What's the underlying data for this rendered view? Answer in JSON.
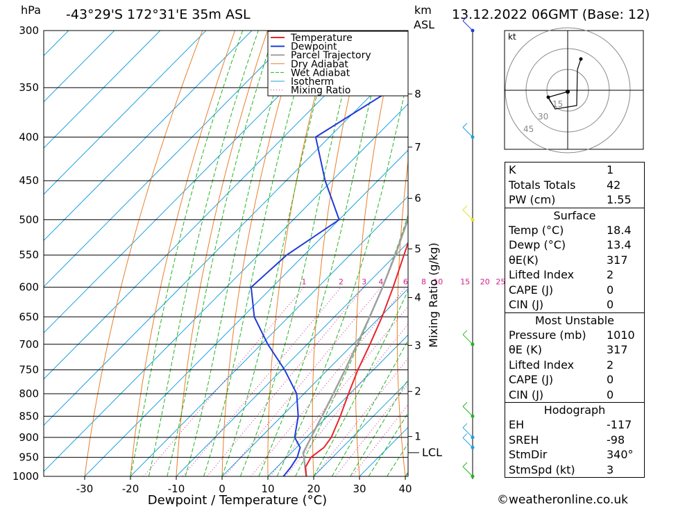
{
  "header": {
    "hpa_label": "hPa",
    "location": "-43°29'S  172°31'E  35m  ASL",
    "km_label": "km",
    "asl_label": "ASL",
    "datetime": "13.12.2022  06GMT  (Base: 12)"
  },
  "axes": {
    "xlabel": "Dewpoint / Temperature (°C)",
    "mixing_label": "Mixing Ratio (g/kg)",
    "lcl_label": "LCL",
    "hodo_unit": "kt",
    "hodo_rings": [
      "15",
      "30",
      "45"
    ]
  },
  "legend": [
    "Temperature",
    "Dewpoint",
    "Parcel Trajectory",
    "Dry Adiabat",
    "Wet Adiabat",
    "Isotherm",
    "Mixing Ratio"
  ],
  "colors": {
    "temperature": "#e8242a",
    "dewpoint": "#1f3bd8",
    "parcel": "#a0a0a0",
    "dry_adiabat": "#e87f2a",
    "wet_adiabat": "#22b422",
    "isotherm": "#1aa0e0",
    "mixing_ratio": "#d0208c"
  },
  "chart_data": {
    "type": "skew-t",
    "pressure_levels": [
      300,
      350,
      400,
      450,
      500,
      550,
      600,
      650,
      700,
      750,
      800,
      850,
      900,
      950,
      1000
    ],
    "x_ticks": [
      -30,
      -20,
      -10,
      0,
      10,
      20,
      30,
      40
    ],
    "xlim": [
      -40,
      40
    ],
    "ylim": [
      1000,
      300
    ],
    "km_ticks": [
      {
        "km": "1",
        "p": 898
      },
      {
        "km": "2",
        "p": 795
      },
      {
        "km": "3",
        "p": 702
      },
      {
        "km": "4",
        "p": 617
      },
      {
        "km": "5",
        "p": 541
      },
      {
        "km": "6",
        "p": 472
      },
      {
        "km": "7",
        "p": 411
      },
      {
        "km": "8",
        "p": 356
      }
    ],
    "lcl_pressure": 938,
    "mixing_ratios": [
      "1",
      "2",
      "3",
      "4",
      "6",
      "8",
      "10",
      "15",
      "20",
      "25"
    ],
    "temperature": [
      {
        "p": 1000,
        "t": 18.4
      },
      {
        "p": 975,
        "t": 16.2
      },
      {
        "p": 950,
        "t": 15.3
      },
      {
        "p": 925,
        "t": 16.0
      },
      {
        "p": 900,
        "t": 15.4
      },
      {
        "p": 850,
        "t": 12.8
      },
      {
        "p": 800,
        "t": 9.7
      },
      {
        "p": 750,
        "t": 6.6
      },
      {
        "p": 700,
        "t": 3.7
      },
      {
        "p": 650,
        "t": 0.4
      },
      {
        "p": 600,
        "t": -3.6
      },
      {
        "p": 550,
        "t": -8.2
      },
      {
        "p": 500,
        "t": -13.2
      },
      {
        "p": 450,
        "t": -18.2
      },
      {
        "p": 400,
        "t": -23.6
      },
      {
        "p": 380,
        "t": -26.0
      },
      {
        "p": 350,
        "t": -31.6
      },
      {
        "p": 300,
        "t": -42.0
      }
    ],
    "dewpoint": [
      {
        "p": 1000,
        "t": 13.4
      },
      {
        "p": 975,
        "t": 13.0
      },
      {
        "p": 950,
        "t": 12.3
      },
      {
        "p": 925,
        "t": 10.8
      },
      {
        "p": 900,
        "t": 7.4
      },
      {
        "p": 850,
        "t": 3.6
      },
      {
        "p": 800,
        "t": -1.6
      },
      {
        "p": 750,
        "t": -9.4
      },
      {
        "p": 700,
        "t": -18.6
      },
      {
        "p": 650,
        "t": -27.5
      },
      {
        "p": 600,
        "t": -34.6
      },
      {
        "p": 550,
        "t": -33.8
      },
      {
        "p": 500,
        "t": -30.0
      },
      {
        "p": 450,
        "t": -41.5
      },
      {
        "p": 400,
        "t": -53.0
      },
      {
        "p": 350,
        "t": -46.5
      },
      {
        "p": 300,
        "t": -57.0
      }
    ],
    "parcel": [
      {
        "p": 1000,
        "t": 18.4
      },
      {
        "p": 938,
        "t": 12.6
      },
      {
        "p": 900,
        "t": 11.0
      },
      {
        "p": 850,
        "t": 8.8
      },
      {
        "p": 800,
        "t": 6.4
      },
      {
        "p": 750,
        "t": 3.8
      },
      {
        "p": 700,
        "t": 0.9
      },
      {
        "p": 650,
        "t": -2.3
      },
      {
        "p": 600,
        "t": -5.9
      },
      {
        "p": 550,
        "t": -10.1
      },
      {
        "p": 500,
        "t": -15.0
      },
      {
        "p": 450,
        "t": -20.8
      },
      {
        "p": 400,
        "t": -27.6
      },
      {
        "p": 350,
        "t": -35.8
      },
      {
        "p": 300,
        "t": -45.5
      }
    ],
    "wind_barbs": [
      {
        "p": 300,
        "color": "#1f3bd8"
      },
      {
        "p": 400,
        "color": "#1aa0e0"
      },
      {
        "p": 500,
        "color": "#e8e020"
      },
      {
        "p": 700,
        "color": "#22b422"
      },
      {
        "p": 850,
        "color": "#22b422"
      },
      {
        "p": 900,
        "color": "#1aa0e0"
      },
      {
        "p": 925,
        "color": "#1aa0e0"
      },
      {
        "p": 1000,
        "color": "#22b422"
      }
    ]
  },
  "tables": {
    "indices": [
      {
        "k": "K",
        "v": "1"
      },
      {
        "k": "Totals Totals",
        "v": "42"
      },
      {
        "k": "PW (cm)",
        "v": "1.55"
      }
    ],
    "surface_title": "Surface",
    "surface": [
      {
        "k": "Temp (°C)",
        "v": "18.4"
      },
      {
        "k": "Dewp (°C)",
        "v": "13.4"
      },
      {
        "k": "θE(K)",
        "v": "317"
      },
      {
        "k": "Lifted Index",
        "v": "2"
      },
      {
        "k": "CAPE (J)",
        "v": "0"
      },
      {
        "k": "CIN (J)",
        "v": "0"
      }
    ],
    "unstable_title": "Most Unstable",
    "unstable": [
      {
        "k": "Pressure (mb)",
        "v": "1010"
      },
      {
        "k": "θE (K)",
        "v": "317"
      },
      {
        "k": "Lifted Index",
        "v": "2"
      },
      {
        "k": "CAPE (J)",
        "v": "0"
      },
      {
        "k": "CIN (J)",
        "v": "0"
      }
    ],
    "hodograph_title": "Hodograph",
    "hodograph": [
      {
        "k": "EH",
        "v": "-117"
      },
      {
        "k": "SREH",
        "v": "-98"
      },
      {
        "k": "StmDir",
        "v": "340°"
      },
      {
        "k": "StmSpd (kt)",
        "v": "3"
      }
    ]
  },
  "credit": "©weatheronline.co.uk"
}
